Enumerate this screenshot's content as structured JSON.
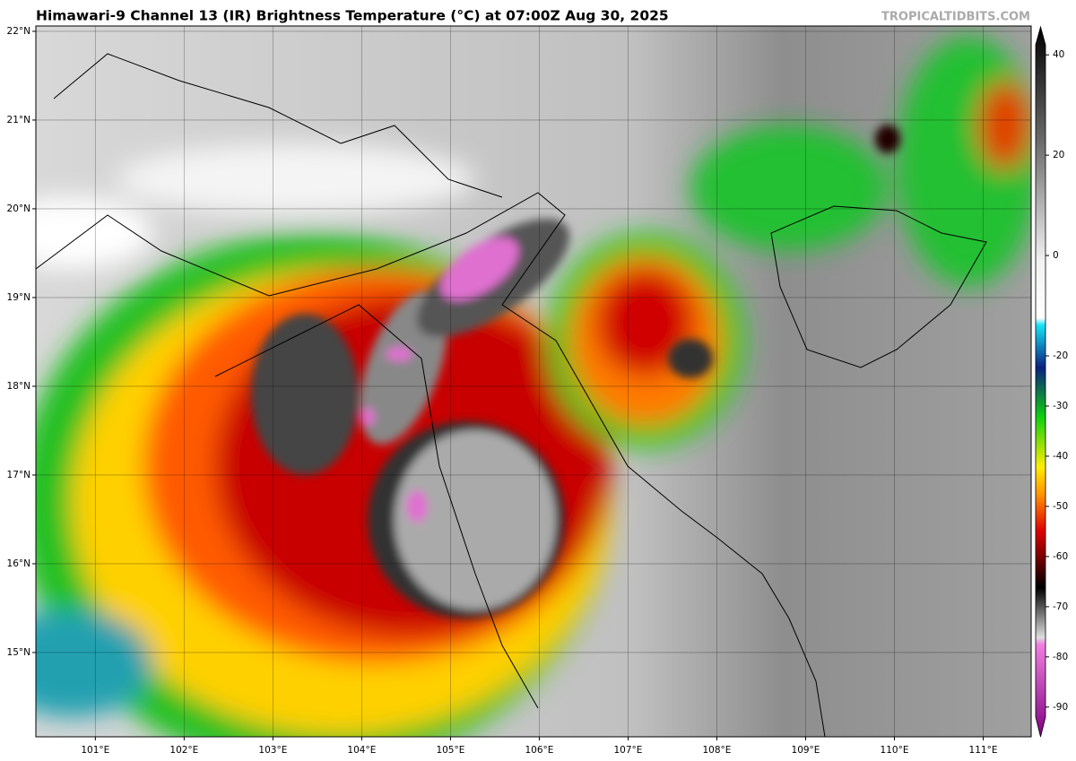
{
  "header": {
    "title": "Himawari-9 Channel 13 (IR) Brightness Temperature (°C) at 07:00Z Aug 30, 2025",
    "source": "TROPICALTIDBITS.COM"
  },
  "map": {
    "lon_range": [
      100.33,
      111.54
    ],
    "lat_range": [
      14.05,
      22.06
    ],
    "lat_ticks": [
      {
        "value": 22,
        "label": "22°N"
      },
      {
        "value": 21,
        "label": "21°N"
      },
      {
        "value": 20,
        "label": "20°N"
      },
      {
        "value": 19,
        "label": "19°N"
      },
      {
        "value": 18,
        "label": "18°N"
      },
      {
        "value": 17,
        "label": "17°N"
      },
      {
        "value": 16,
        "label": "16°N"
      },
      {
        "value": 15,
        "label": "15°N"
      }
    ],
    "lon_ticks": [
      {
        "value": 101,
        "label": "101°E"
      },
      {
        "value": 102,
        "label": "102°E"
      },
      {
        "value": 103,
        "label": "103°E"
      },
      {
        "value": 104,
        "label": "104°E"
      },
      {
        "value": 105,
        "label": "105°E"
      },
      {
        "value": 106,
        "label": "106°E"
      },
      {
        "value": 107,
        "label": "107°E"
      },
      {
        "value": 108,
        "label": "108°E"
      },
      {
        "value": 109,
        "label": "109°E"
      },
      {
        "value": 110,
        "label": "110°E"
      },
      {
        "value": 111,
        "label": "111°E"
      }
    ]
  },
  "colorbar": {
    "range": [
      -92,
      42
    ],
    "ticks": [
      40,
      20,
      0,
      -20,
      -30,
      -40,
      -50,
      -60,
      -70,
      -80,
      -90
    ]
  }
}
